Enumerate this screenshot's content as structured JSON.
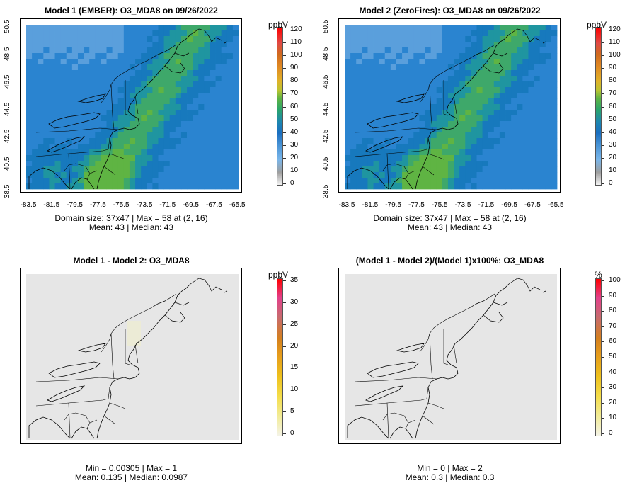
{
  "panels": [
    {
      "title": "Model 1 (EMBER): O3_MDA8 on 09/26/2022",
      "unit": "ppbV",
      "ticks": [
        "120",
        "110",
        "100",
        "90",
        "80",
        "70",
        "60",
        "50",
        "40",
        "30",
        "20",
        "10",
        "0"
      ],
      "stats_line1": "Domain size: 37x47 | Max = 58 at (2, 16)",
      "stats_line2": "Mean: 43 |  Median: 43",
      "has_axes": true,
      "fill": "ozone"
    },
    {
      "title": "Model 2 (ZeroFires): O3_MDA8 on 09/26/2022",
      "unit": "ppbV",
      "ticks": [
        "120",
        "110",
        "100",
        "90",
        "80",
        "70",
        "60",
        "50",
        "40",
        "30",
        "20",
        "10",
        "0"
      ],
      "stats_line1": "Domain size: 37x47 | Max = 58 at (2, 16)",
      "stats_line2": "Mean: 43 |  Median: 43",
      "has_axes": true,
      "fill": "ozone"
    },
    {
      "title": "Model 1 - Model 2: O3_MDA8",
      "unit": "ppbV",
      "ticks": [
        "35",
        "30",
        "25",
        "20",
        "15",
        "10",
        "5",
        "0"
      ],
      "stats_line1": "Min = 0.00305 | Max = 1",
      "stats_line2": "Mean: 0.135 |  Median: 0.0987",
      "has_axes": false,
      "fill": "diff"
    },
    {
      "title": "(Model 1 - Model 2)/(Model 1)x100%: O3_MDA8",
      "unit": "%",
      "ticks": [
        "100",
        "90",
        "80",
        "70",
        "60",
        "50",
        "40",
        "30",
        "20",
        "10",
        "0"
      ],
      "stats_line1": "Min = 0 | Max = 2",
      "stats_line2": "Mean: 0.3 |  Median: 0.3",
      "has_axes": false,
      "fill": "pct"
    }
  ],
  "x_ticks": [
    "-83.5",
    "-81.5",
    "-79.5",
    "-77.5",
    "-75.5",
    "-73.5",
    "-71.5",
    "-69.5",
    "-67.5",
    "-65.5"
  ],
  "y_ticks": [
    "38.5",
    "40.5",
    "42.5",
    "44.5",
    "46.5",
    "48.5",
    "50.5"
  ]
}
